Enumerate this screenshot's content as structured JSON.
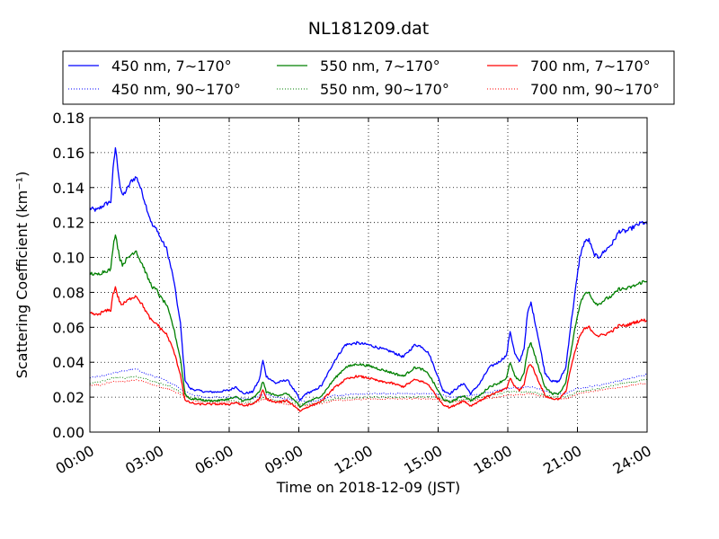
{
  "chart_data": {
    "type": "line",
    "title": "NL181209.dat",
    "xlabel": "Time on 2018-12-09 (JST)",
    "ylabel": "Scattering Coefficient (km⁻¹)",
    "x_unit": "hours",
    "xlim": [
      0,
      24
    ],
    "ylim": [
      0,
      0.18
    ],
    "x_ticks": [
      0,
      3,
      6,
      9,
      12,
      15,
      18,
      21,
      24
    ],
    "x_tick_labels": [
      "00:00",
      "03:00",
      "06:00",
      "09:00",
      "12:00",
      "15:00",
      "18:00",
      "21:00",
      "24:00"
    ],
    "y_ticks": [
      0,
      0.02,
      0.04,
      0.06,
      0.08,
      0.1,
      0.12,
      0.14,
      0.16,
      0.18
    ],
    "y_tick_labels": [
      "0.00",
      "0.02",
      "0.04",
      "0.06",
      "0.08",
      "0.10",
      "0.12",
      "0.14",
      "0.16",
      "0.18"
    ],
    "grid": true,
    "legend_position": "top (above plot)",
    "series": [
      {
        "name": "450 nm, 7∼170°",
        "color": "#0000ff",
        "style": "solid",
        "x": [
          0,
          0.3,
          0.6,
          0.9,
          1.0,
          1.1,
          1.2,
          1.3,
          1.4,
          1.6,
          1.8,
          2.0,
          2.1,
          2.3,
          2.5,
          2.7,
          2.9,
          3.0,
          3.3,
          3.6,
          3.9,
          4.1,
          4.3,
          4.6,
          5.0,
          5.5,
          6.0,
          6.3,
          6.6,
          7.0,
          7.3,
          7.45,
          7.6,
          8.0,
          8.5,
          8.9,
          9.05,
          9.3,
          9.7,
          10.0,
          10.5,
          11.0,
          11.5,
          12.0,
          12.5,
          13.0,
          13.5,
          14.0,
          14.3,
          14.6,
          14.9,
          15.2,
          15.5,
          15.8,
          16.1,
          16.4,
          16.8,
          17.2,
          17.6,
          17.95,
          18.1,
          18.3,
          18.5,
          18.7,
          18.85,
          19.0,
          19.3,
          19.6,
          19.9,
          20.2,
          20.5,
          20.7,
          20.9,
          21.1,
          21.3,
          21.5,
          21.7,
          21.9,
          22.2,
          22.5,
          22.8,
          23.1,
          23.5,
          23.8,
          24.0
        ],
        "y": [
          0.128,
          0.127,
          0.13,
          0.132,
          0.15,
          0.163,
          0.152,
          0.141,
          0.135,
          0.139,
          0.144,
          0.146,
          0.143,
          0.135,
          0.126,
          0.118,
          0.116,
          0.112,
          0.105,
          0.088,
          0.062,
          0.03,
          0.025,
          0.024,
          0.023,
          0.023,
          0.024,
          0.026,
          0.022,
          0.023,
          0.03,
          0.041,
          0.032,
          0.028,
          0.03,
          0.022,
          0.018,
          0.022,
          0.024,
          0.027,
          0.04,
          0.05,
          0.051,
          0.05,
          0.048,
          0.046,
          0.043,
          0.05,
          0.049,
          0.045,
          0.035,
          0.024,
          0.022,
          0.025,
          0.028,
          0.022,
          0.028,
          0.037,
          0.04,
          0.044,
          0.058,
          0.045,
          0.04,
          0.048,
          0.068,
          0.074,
          0.055,
          0.034,
          0.029,
          0.029,
          0.037,
          0.06,
          0.08,
          0.1,
          0.109,
          0.11,
          0.102,
          0.1,
          0.104,
          0.108,
          0.115,
          0.115,
          0.118,
          0.12,
          0.119
        ]
      },
      {
        "name": "450 nm, 90∼170°",
        "color": "#0000ff",
        "style": "dotted",
        "x": [
          0,
          0.5,
          1.0,
          1.5,
          2.0,
          2.5,
          3.0,
          3.5,
          4.0,
          4.5,
          5.0,
          6.0,
          7.0,
          7.5,
          8.0,
          9.0,
          9.5,
          10.5,
          12.0,
          13.5,
          15.0,
          15.5,
          16.5,
          18.0,
          19.0,
          20.0,
          20.5,
          21.0,
          22.0,
          23.0,
          24.0
        ],
        "y": [
          0.031,
          0.032,
          0.034,
          0.035,
          0.036,
          0.033,
          0.031,
          0.028,
          0.024,
          0.021,
          0.02,
          0.02,
          0.019,
          0.022,
          0.02,
          0.018,
          0.017,
          0.021,
          0.022,
          0.022,
          0.022,
          0.02,
          0.021,
          0.025,
          0.026,
          0.022,
          0.022,
          0.025,
          0.027,
          0.03,
          0.033
        ]
      },
      {
        "name": "550 nm, 7∼170°",
        "color": "#008000",
        "style": "solid",
        "x": [
          0,
          0.3,
          0.6,
          0.9,
          1.0,
          1.1,
          1.2,
          1.3,
          1.4,
          1.6,
          1.8,
          2.0,
          2.1,
          2.3,
          2.5,
          2.7,
          2.9,
          3.0,
          3.3,
          3.6,
          3.9,
          4.1,
          4.3,
          4.6,
          5.0,
          5.5,
          6.0,
          6.3,
          6.6,
          7.0,
          7.3,
          7.45,
          7.6,
          8.0,
          8.5,
          8.9,
          9.05,
          9.3,
          9.7,
          10.0,
          10.5,
          11.0,
          11.5,
          12.0,
          12.5,
          13.0,
          13.5,
          14.0,
          14.3,
          14.6,
          14.9,
          15.2,
          15.5,
          15.8,
          16.1,
          16.4,
          16.8,
          17.2,
          17.6,
          17.95,
          18.1,
          18.3,
          18.5,
          18.7,
          18.85,
          19.0,
          19.3,
          19.6,
          19.9,
          20.2,
          20.5,
          20.7,
          20.9,
          21.1,
          21.3,
          21.5,
          21.7,
          21.9,
          22.2,
          22.5,
          22.8,
          23.1,
          23.5,
          23.8,
          24.0
        ],
        "y": [
          0.091,
          0.09,
          0.092,
          0.093,
          0.106,
          0.114,
          0.106,
          0.099,
          0.096,
          0.099,
          0.102,
          0.104,
          0.1,
          0.095,
          0.088,
          0.083,
          0.081,
          0.078,
          0.073,
          0.06,
          0.042,
          0.022,
          0.019,
          0.019,
          0.018,
          0.018,
          0.019,
          0.02,
          0.018,
          0.019,
          0.023,
          0.029,
          0.023,
          0.021,
          0.022,
          0.017,
          0.014,
          0.017,
          0.019,
          0.021,
          0.03,
          0.037,
          0.039,
          0.038,
          0.036,
          0.034,
          0.032,
          0.037,
          0.036,
          0.033,
          0.026,
          0.019,
          0.017,
          0.019,
          0.021,
          0.018,
          0.021,
          0.026,
          0.028,
          0.031,
          0.04,
          0.032,
          0.029,
          0.034,
          0.047,
          0.051,
          0.038,
          0.026,
          0.022,
          0.022,
          0.028,
          0.045,
          0.06,
          0.073,
          0.079,
          0.08,
          0.075,
          0.073,
          0.076,
          0.078,
          0.082,
          0.082,
          0.084,
          0.086,
          0.086
        ]
      },
      {
        "name": "550 nm, 90∼170°",
        "color": "#008000",
        "style": "dotted",
        "x": [
          0,
          0.5,
          1.0,
          1.5,
          2.0,
          2.5,
          3.0,
          3.5,
          4.0,
          4.5,
          5.0,
          6.0,
          7.0,
          7.5,
          8.0,
          9.0,
          9.5,
          10.5,
          12.0,
          13.5,
          15.0,
          15.5,
          16.5,
          18.0,
          19.0,
          20.0,
          20.5,
          21.0,
          22.0,
          23.0,
          24.0
        ],
        "y": [
          0.028,
          0.029,
          0.031,
          0.031,
          0.032,
          0.03,
          0.028,
          0.026,
          0.022,
          0.019,
          0.018,
          0.018,
          0.017,
          0.02,
          0.018,
          0.016,
          0.016,
          0.019,
          0.02,
          0.02,
          0.02,
          0.018,
          0.019,
          0.023,
          0.023,
          0.02,
          0.02,
          0.023,
          0.025,
          0.028,
          0.03
        ]
      },
      {
        "name": "700 nm, 7∼170°",
        "color": "#ff0000",
        "style": "solid",
        "x": [
          0,
          0.3,
          0.6,
          0.9,
          1.0,
          1.1,
          1.2,
          1.3,
          1.4,
          1.6,
          1.8,
          2.0,
          2.1,
          2.3,
          2.5,
          2.7,
          2.9,
          3.0,
          3.3,
          3.6,
          3.9,
          4.1,
          4.3,
          4.6,
          5.0,
          5.5,
          6.0,
          6.3,
          6.6,
          7.0,
          7.3,
          7.45,
          7.6,
          8.0,
          8.5,
          8.9,
          9.05,
          9.3,
          9.7,
          10.0,
          10.5,
          11.0,
          11.5,
          12.0,
          12.5,
          13.0,
          13.5,
          14.0,
          14.3,
          14.6,
          14.9,
          15.2,
          15.5,
          15.8,
          16.1,
          16.4,
          16.8,
          17.2,
          17.6,
          17.95,
          18.1,
          18.3,
          18.5,
          18.7,
          18.85,
          19.0,
          19.3,
          19.6,
          19.9,
          20.2,
          20.5,
          20.7,
          20.9,
          21.1,
          21.3,
          21.5,
          21.7,
          21.9,
          22.2,
          22.5,
          22.8,
          23.1,
          23.5,
          23.8,
          24.0
        ],
        "y": [
          0.068,
          0.067,
          0.069,
          0.07,
          0.079,
          0.083,
          0.078,
          0.074,
          0.073,
          0.075,
          0.077,
          0.078,
          0.076,
          0.072,
          0.067,
          0.063,
          0.062,
          0.06,
          0.056,
          0.047,
          0.033,
          0.018,
          0.017,
          0.016,
          0.016,
          0.016,
          0.016,
          0.017,
          0.015,
          0.016,
          0.019,
          0.024,
          0.019,
          0.017,
          0.018,
          0.014,
          0.012,
          0.014,
          0.016,
          0.018,
          0.025,
          0.03,
          0.032,
          0.031,
          0.029,
          0.028,
          0.026,
          0.03,
          0.029,
          0.027,
          0.021,
          0.016,
          0.014,
          0.016,
          0.018,
          0.015,
          0.018,
          0.021,
          0.023,
          0.025,
          0.031,
          0.026,
          0.024,
          0.027,
          0.037,
          0.039,
          0.03,
          0.021,
          0.019,
          0.019,
          0.023,
          0.036,
          0.046,
          0.055,
          0.059,
          0.06,
          0.057,
          0.055,
          0.056,
          0.058,
          0.061,
          0.061,
          0.063,
          0.064,
          0.064
        ]
      },
      {
        "name": "700 nm, 90∼170°",
        "color": "#ff0000",
        "style": "dotted",
        "x": [
          0,
          0.5,
          1.0,
          1.5,
          2.0,
          2.5,
          3.0,
          3.5,
          4.0,
          4.5,
          5.0,
          6.0,
          7.0,
          7.5,
          8.0,
          9.0,
          9.5,
          10.5,
          12.0,
          13.5,
          15.0,
          15.5,
          16.5,
          18.0,
          19.0,
          20.0,
          20.5,
          21.0,
          22.0,
          23.0,
          24.0
        ],
        "y": [
          0.027,
          0.027,
          0.029,
          0.029,
          0.03,
          0.028,
          0.026,
          0.024,
          0.021,
          0.018,
          0.017,
          0.017,
          0.016,
          0.019,
          0.017,
          0.015,
          0.015,
          0.018,
          0.019,
          0.019,
          0.019,
          0.017,
          0.018,
          0.021,
          0.022,
          0.019,
          0.019,
          0.022,
          0.024,
          0.026,
          0.028
        ]
      }
    ]
  }
}
